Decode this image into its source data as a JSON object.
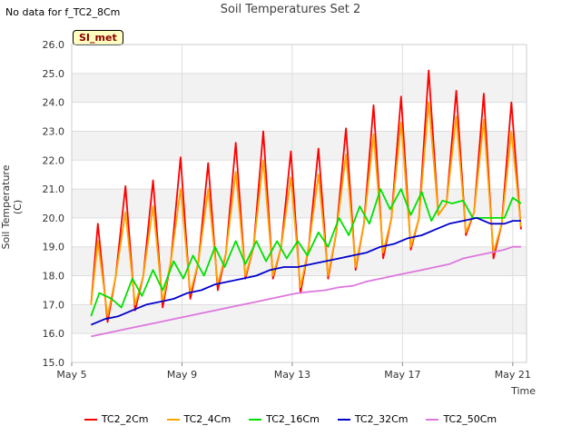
{
  "colors": {
    "TC2_2Cm": "#ff0000",
    "TC2_4Cm": "#ffa500",
    "TC2_16Cm": "#00e000",
    "TC2_32Cm": "#0000cc",
    "TC2_50Cm": "#dd77dd",
    "band": "#f2f2f2",
    "grid": "#dddddd"
  },
  "no_data_note": "No data for f_TC2_8Cm",
  "badge_label": "SI_met",
  "chart_data": {
    "type": "line",
    "title": "Soil Temperatures Set 2",
    "xlabel": "Time",
    "ylabel": "Soil Temperature (C)",
    "xlim_days": [
      5,
      21.5
    ],
    "ylim": [
      15.0,
      26.0
    ],
    "yticks": [
      15.0,
      16.0,
      17.0,
      18.0,
      19.0,
      20.0,
      21.0,
      22.0,
      23.0,
      24.0,
      25.0,
      26.0
    ],
    "xticks": [
      {
        "label": "May 5",
        "day": 5
      },
      {
        "label": "May 9",
        "day": 9
      },
      {
        "label": "May 13",
        "day": 13
      },
      {
        "label": "May 17",
        "day": 17
      },
      {
        "label": "May 21",
        "day": 21
      }
    ],
    "grid": true,
    "legend_position": "bottom",
    "series": [
      {
        "name": "TC2_2Cm",
        "x": [
          5.7,
          5.95,
          6.3,
          6.6,
          6.95,
          7.3,
          7.6,
          7.95,
          8.3,
          8.6,
          8.95,
          9.3,
          9.6,
          9.95,
          10.3,
          10.6,
          10.95,
          11.3,
          11.6,
          11.95,
          12.3,
          12.6,
          12.95,
          13.3,
          13.6,
          13.95,
          14.3,
          14.6,
          14.95,
          15.3,
          15.6,
          15.95,
          16.3,
          16.6,
          16.95,
          17.3,
          17.6,
          17.95,
          18.3,
          18.6,
          18.95,
          19.3,
          19.6,
          19.95,
          20.3,
          20.6,
          20.95,
          21.3
        ],
        "y": [
          17.0,
          19.8,
          16.4,
          18.0,
          21.1,
          16.8,
          18.0,
          21.3,
          16.9,
          18.5,
          22.1,
          17.2,
          18.5,
          21.9,
          17.5,
          18.8,
          22.6,
          17.9,
          19.0,
          23.0,
          17.9,
          19.0,
          22.3,
          17.4,
          19.0,
          22.4,
          17.9,
          19.5,
          23.1,
          18.2,
          19.8,
          23.9,
          18.6,
          20.0,
          24.2,
          18.9,
          20.0,
          25.1,
          20.1,
          20.5,
          24.4,
          19.4,
          20.2,
          24.3,
          18.6,
          19.8,
          24.0,
          19.6
        ]
      },
      {
        "name": "TC2_4Cm",
        "x": [
          5.7,
          5.95,
          6.3,
          6.6,
          6.95,
          7.3,
          7.6,
          7.95,
          8.3,
          8.6,
          8.95,
          9.3,
          9.6,
          9.95,
          10.3,
          10.6,
          10.95,
          11.3,
          11.6,
          11.95,
          12.3,
          12.6,
          12.95,
          13.3,
          13.6,
          13.95,
          14.3,
          14.6,
          14.95,
          15.3,
          15.6,
          15.95,
          16.3,
          16.6,
          16.95,
          17.3,
          17.6,
          17.95,
          18.3,
          18.6,
          18.95,
          19.3,
          19.6,
          19.95,
          20.3,
          20.6,
          20.95,
          21.3
        ],
        "y": [
          17.0,
          19.2,
          16.6,
          18.0,
          20.2,
          17.0,
          18.0,
          20.4,
          17.1,
          18.5,
          21.0,
          17.4,
          18.5,
          21.0,
          17.7,
          18.8,
          21.6,
          18.0,
          19.0,
          22.0,
          18.0,
          19.0,
          21.4,
          17.6,
          19.0,
          21.5,
          18.0,
          19.5,
          22.2,
          18.3,
          19.8,
          22.9,
          18.8,
          20.0,
          23.3,
          19.0,
          20.0,
          24.0,
          20.1,
          20.5,
          23.5,
          19.5,
          20.2,
          23.4,
          18.8,
          19.8,
          23.0,
          19.7
        ]
      },
      {
        "name": "TC2_16Cm",
        "x": [
          5.7,
          6.0,
          6.45,
          6.8,
          7.2,
          7.55,
          7.95,
          8.3,
          8.7,
          9.05,
          9.4,
          9.8,
          10.2,
          10.55,
          10.95,
          11.3,
          11.7,
          12.05,
          12.45,
          12.8,
          13.2,
          13.55,
          13.95,
          14.3,
          14.7,
          15.05,
          15.45,
          15.8,
          16.2,
          16.55,
          16.95,
          17.3,
          17.7,
          18.05,
          18.45,
          18.8,
          19.2,
          19.55,
          19.95,
          20.3,
          20.7,
          21.0,
          21.3
        ],
        "y": [
          16.6,
          17.4,
          17.2,
          16.9,
          17.9,
          17.3,
          18.2,
          17.5,
          18.5,
          17.9,
          18.7,
          18.0,
          19.0,
          18.3,
          19.2,
          18.4,
          19.2,
          18.5,
          19.2,
          18.6,
          19.2,
          18.7,
          19.5,
          19.0,
          20.0,
          19.4,
          20.4,
          19.8,
          21.0,
          20.3,
          21.0,
          20.1,
          20.9,
          19.9,
          20.6,
          20.5,
          20.6,
          20.0,
          20.0,
          20.0,
          20.0,
          20.7,
          20.5
        ]
      },
      {
        "name": "TC2_32Cm",
        "x": [
          5.7,
          6.2,
          6.7,
          7.2,
          7.7,
          8.2,
          8.7,
          9.2,
          9.7,
          10.2,
          10.7,
          11.2,
          11.7,
          12.2,
          12.7,
          13.2,
          13.7,
          14.2,
          14.7,
          15.2,
          15.7,
          16.2,
          16.7,
          17.2,
          17.7,
          18.2,
          18.7,
          19.2,
          19.7,
          20.2,
          20.7,
          21.0,
          21.3
        ],
        "y": [
          16.3,
          16.5,
          16.6,
          16.8,
          17.0,
          17.1,
          17.2,
          17.4,
          17.5,
          17.7,
          17.8,
          17.9,
          18.0,
          18.2,
          18.3,
          18.3,
          18.4,
          18.5,
          18.6,
          18.7,
          18.8,
          19.0,
          19.1,
          19.3,
          19.4,
          19.6,
          19.8,
          19.9,
          20.0,
          19.8,
          19.8,
          19.9,
          19.9
        ]
      },
      {
        "name": "TC2_50Cm",
        "x": [
          5.7,
          6.2,
          6.7,
          7.2,
          7.7,
          8.2,
          8.7,
          9.2,
          9.7,
          10.2,
          10.7,
          11.2,
          11.7,
          12.2,
          12.7,
          13.2,
          13.7,
          14.2,
          14.7,
          15.2,
          15.7,
          16.2,
          16.7,
          17.2,
          17.7,
          18.2,
          18.7,
          19.2,
          19.7,
          20.2,
          20.7,
          21.0,
          21.3
        ],
        "y": [
          15.9,
          16.0,
          16.1,
          16.2,
          16.3,
          16.4,
          16.5,
          16.6,
          16.7,
          16.8,
          16.9,
          17.0,
          17.1,
          17.2,
          17.3,
          17.4,
          17.45,
          17.5,
          17.6,
          17.65,
          17.8,
          17.9,
          18.0,
          18.1,
          18.2,
          18.3,
          18.4,
          18.6,
          18.7,
          18.8,
          18.9,
          19.0,
          19.0
        ]
      }
    ]
  }
}
